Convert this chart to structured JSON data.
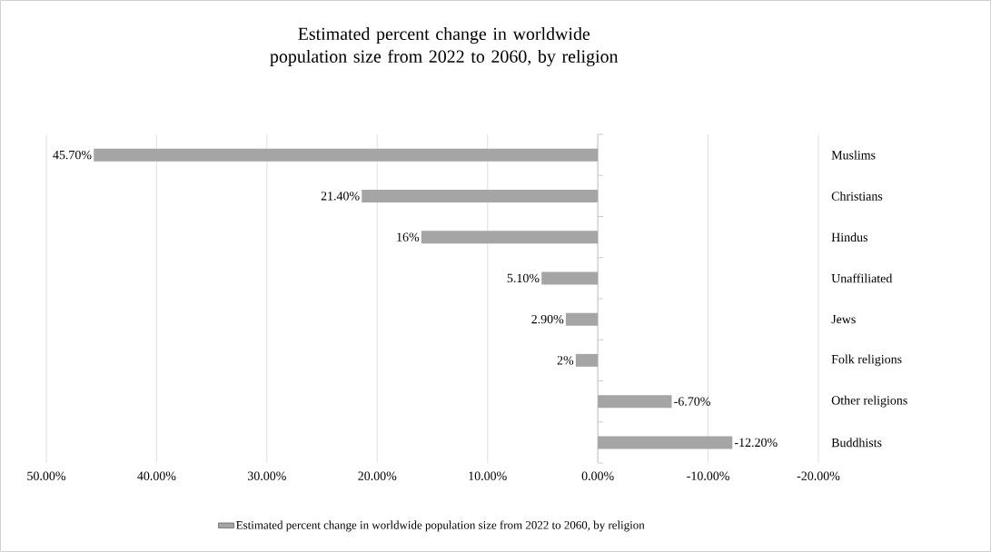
{
  "chart_data": {
    "type": "bar",
    "orientation": "horizontal",
    "title": "Estimated percent change in worldwide population size from 2022 to 2060, by religion",
    "categories": [
      "Muslims",
      "Christians",
      "Hindus",
      "Unaffiliated",
      "Jews",
      "Folk religions",
      "Other religions",
      "Buddhists"
    ],
    "series": [
      {
        "name": "Estimated percent change in worldwide population size from 2022 to 2060, by religion",
        "color": "#a5a5a5",
        "values": [
          45.7,
          21.4,
          16,
          5.1,
          2.9,
          2,
          -6.7,
          -12.2
        ],
        "value_labels": [
          "45.70%",
          "21.40%",
          "16%",
          "5.10%",
          "2.90%",
          "2%",
          "-6.70%",
          "-12.20%"
        ]
      }
    ],
    "xlim": [
      50,
      -20
    ],
    "xticks": [
      {
        "value": 50,
        "label": "50.00%"
      },
      {
        "value": 40,
        "label": "40.00%"
      },
      {
        "value": 30,
        "label": "30.00%"
      },
      {
        "value": 20,
        "label": "20.00%"
      },
      {
        "value": 10,
        "label": "10.00%"
      },
      {
        "value": 0,
        "label": "0.00%"
      },
      {
        "value": -10,
        "label": "-10.00%"
      },
      {
        "value": -20,
        "label": "-20.00%"
      }
    ],
    "grid": "x",
    "legend": "bottom"
  }
}
